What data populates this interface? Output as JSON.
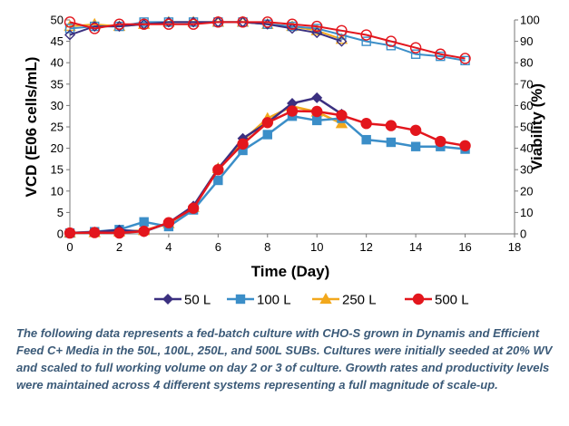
{
  "chart_data": {
    "type": "line",
    "xlabel": "Time (Day)",
    "ylabel": "VCD (E06 cells/mL)",
    "y2label": "Viability (%)",
    "xlim": [
      0,
      18
    ],
    "ylim": [
      0,
      50
    ],
    "y2lim": [
      0,
      100
    ],
    "x_ticks": [
      "0",
      "2",
      "4",
      "6",
      "8",
      "10",
      "12",
      "14",
      "16",
      "18"
    ],
    "y_ticks": [
      "0",
      "5",
      "10",
      "15",
      "20",
      "25",
      "30",
      "35",
      "40",
      "45",
      "50"
    ],
    "y2_ticks": [
      "0",
      "10",
      "20",
      "30",
      "40",
      "50",
      "60",
      "70",
      "80",
      "90",
      "100"
    ],
    "grid": false,
    "legend_position": "bottom",
    "series": [
      {
        "name": "50 L",
        "color": "#3b3080",
        "marker": "diamond",
        "vcd": {
          "x": [
            0,
            1,
            2,
            3,
            4,
            5,
            6,
            7,
            8,
            9,
            10,
            11
          ],
          "y": [
            0.2,
            0.4,
            0.9,
            0.5,
            2.6,
            6.5,
            15.2,
            22.3,
            26.0,
            30.5,
            31.8,
            28.0
          ]
        },
        "viability": {
          "x": [
            0,
            1,
            2,
            3,
            4,
            5,
            6,
            7,
            8,
            9,
            10,
            11
          ],
          "y": [
            93,
            97,
            97,
            98,
            99,
            99,
            99,
            99,
            98,
            96,
            94,
            90
          ]
        }
      },
      {
        "name": "100 L",
        "color": "#3b8ec8",
        "marker": "square",
        "vcd": {
          "x": [
            0,
            1,
            2,
            3,
            4,
            5,
            6,
            7,
            8,
            9,
            10,
            11,
            12,
            13,
            14,
            15,
            16
          ],
          "y": [
            0.2,
            0.5,
            1.0,
            2.8,
            1.7,
            5.6,
            12.5,
            19.5,
            23.2,
            27.5,
            26.5,
            27.0,
            22.0,
            21.4,
            20.4,
            20.4,
            19.8
          ]
        },
        "viability": {
          "x": [
            0,
            1,
            2,
            3,
            4,
            5,
            6,
            7,
            8,
            9,
            10,
            11,
            12,
            13,
            14,
            15,
            16
          ],
          "y": [
            96,
            97,
            97,
            99,
            99,
            99,
            99,
            99,
            98,
            97,
            96,
            93,
            90,
            88,
            84,
            83,
            81
          ]
        }
      },
      {
        "name": "250 L",
        "color": "#f2a81d",
        "marker": "triangle",
        "vcd": {
          "x": [
            0,
            1,
            2,
            3,
            4,
            5,
            6,
            7,
            8,
            9,
            10,
            11
          ],
          "y": [
            0.2,
            0.3,
            0.5,
            0.8,
            2.4,
            6.2,
            15.3,
            21.8,
            27.0,
            29.8,
            28.5,
            25.8
          ]
        },
        "viability": {
          "x": [
            0,
            1,
            2,
            3,
            4,
            5,
            6,
            7,
            8,
            9,
            10,
            11
          ],
          "y": [
            97,
            98,
            97,
            98,
            99,
            99,
            99,
            99,
            98,
            97,
            95,
            91
          ]
        }
      },
      {
        "name": "500 L",
        "color": "#e3161d",
        "marker": "circle",
        "vcd": {
          "x": [
            0,
            1,
            2,
            3,
            4,
            5,
            6,
            7,
            8,
            9,
            10,
            11,
            12,
            13,
            14,
            15,
            16
          ],
          "y": [
            0.2,
            0.3,
            0.2,
            0.6,
            2.6,
            6.0,
            15.0,
            21.0,
            26.0,
            28.7,
            28.6,
            27.7,
            25.8,
            25.3,
            24.2,
            21.6,
            20.6
          ]
        },
        "viability": {
          "x": [
            0,
            1,
            2,
            3,
            4,
            5,
            6,
            7,
            8,
            9,
            10,
            11,
            12,
            13,
            14,
            15,
            16
          ],
          "y": [
            99,
            96,
            98,
            98,
            98,
            98,
            99,
            99,
            99,
            98,
            97,
            95,
            93,
            90,
            87,
            84,
            82
          ]
        }
      }
    ]
  },
  "caption": "The following data represents a fed-batch culture with CHO-S grown in Dynamis and Efficient Feed C+ Media in the 50L, 100L, 250L, and 500L SUBs.  Cultures were initially seeded at 20% WV and scaled to full working volume on day 2 or 3 of culture. Growth rates and productivity levels were maintained across 4 different systems representing a full magnitude of scale-up."
}
